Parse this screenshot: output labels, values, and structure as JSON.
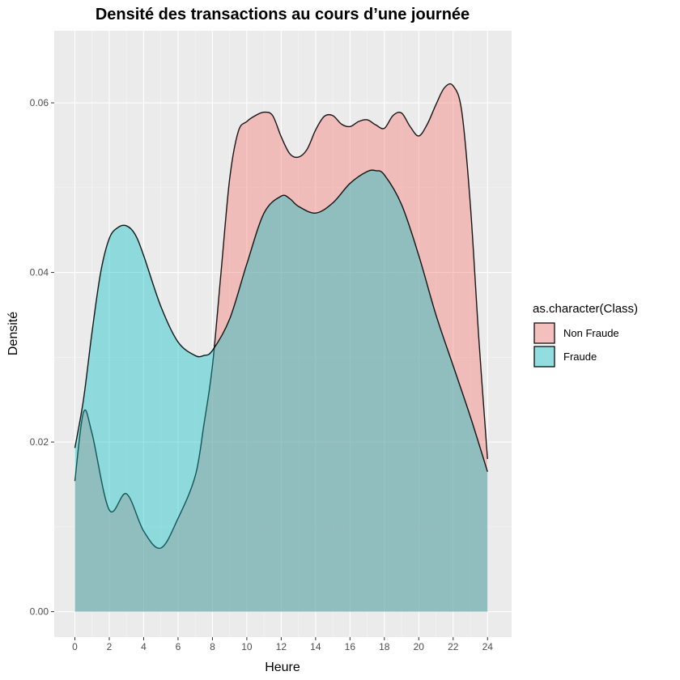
{
  "chart_data": {
    "type": "area",
    "title": "Densité des transactions au cours d’une journée",
    "xlabel": "Heure",
    "ylabel": "Densité",
    "xlim": [
      -1.2,
      25.4
    ],
    "ylim": [
      -0.003,
      0.0685
    ],
    "x_ticks": [
      0,
      2,
      4,
      6,
      8,
      10,
      12,
      14,
      16,
      18,
      20,
      22,
      24
    ],
    "x_tick_labels": [
      "0",
      "2",
      "4",
      "6",
      "8",
      "10",
      "12",
      "14",
      "16",
      "18",
      "20",
      "22",
      "24"
    ],
    "y_ticks": [
      0,
      0.02,
      0.04,
      0.06
    ],
    "y_tick_labels": [
      "0.00",
      "0.02",
      "0.04",
      "0.06"
    ],
    "grid": true,
    "legend": {
      "title": "as.character(Class)",
      "placement": "right",
      "entries": [
        "Non Fraude",
        "Fraude"
      ]
    },
    "series": [
      {
        "name": "Non Fraude",
        "color": "#F8766D",
        "fill_opacity": 0.4,
        "x": [
          0,
          0.5,
          1,
          2,
          3,
          4,
          5,
          6,
          7,
          7.5,
          8,
          8.5,
          9,
          9.5,
          10,
          10.5,
          11,
          11.5,
          12,
          12.5,
          13,
          13.5,
          14,
          14.5,
          15,
          15.5,
          16,
          16.5,
          17,
          17.5,
          18,
          18.5,
          19,
          19.5,
          20,
          20.5,
          21,
          21.5,
          22,
          22.5,
          23,
          23.5,
          24
        ],
        "y": [
          0.0154,
          0.0235,
          0.021,
          0.012,
          0.0139,
          0.0095,
          0.0075,
          0.011,
          0.016,
          0.022,
          0.029,
          0.04,
          0.051,
          0.0566,
          0.0578,
          0.0585,
          0.0589,
          0.0585,
          0.056,
          0.054,
          0.0536,
          0.0545,
          0.0568,
          0.0584,
          0.0585,
          0.0575,
          0.0572,
          0.0578,
          0.058,
          0.0574,
          0.057,
          0.0585,
          0.0588,
          0.0572,
          0.0561,
          0.0575,
          0.0598,
          0.0618,
          0.062,
          0.059,
          0.048,
          0.032,
          0.018
        ]
      },
      {
        "name": "Fraude",
        "color": "#00BFC4",
        "fill_opacity": 0.4,
        "x": [
          0,
          0.5,
          1,
          1.5,
          2,
          2.5,
          3,
          3.5,
          4,
          5,
          6,
          7,
          7.5,
          8,
          9,
          10,
          11,
          12,
          12.5,
          13,
          14,
          15,
          16,
          17,
          17.5,
          18,
          19,
          20,
          21,
          22,
          23,
          24
        ],
        "y": [
          0.0193,
          0.025,
          0.033,
          0.04,
          0.044,
          0.0453,
          0.0455,
          0.0445,
          0.042,
          0.036,
          0.0318,
          0.0302,
          0.0302,
          0.0308,
          0.0345,
          0.041,
          0.047,
          0.049,
          0.0487,
          0.0478,
          0.047,
          0.0482,
          0.0505,
          0.0519,
          0.052,
          0.0515,
          0.048,
          0.042,
          0.035,
          0.029,
          0.023,
          0.0165
        ]
      }
    ]
  }
}
